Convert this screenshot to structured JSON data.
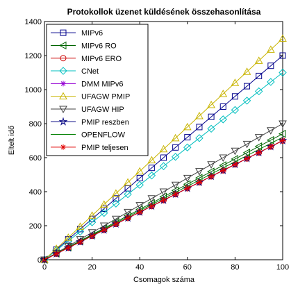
{
  "chart_data": {
    "type": "line",
    "title": "Protokollok üzenet küldésének összehasonlítása",
    "xlabel": "Csomagok száma",
    "ylabel": "Eltelt idő",
    "xlim": [
      0,
      100
    ],
    "ylim": [
      0,
      1400
    ],
    "xticks": [
      "0",
      "20",
      "40",
      "60",
      "80",
      "100"
    ],
    "yticks": [
      "0",
      "200",
      "400",
      "600",
      "800",
      "1000",
      "1200",
      "1400"
    ],
    "grid": false,
    "legend_position": "top-left",
    "x": [
      0,
      5,
      10,
      15,
      20,
      25,
      30,
      35,
      40,
      45,
      50,
      55,
      60,
      65,
      70,
      75,
      80,
      85,
      90,
      95,
      100
    ],
    "series": [
      {
        "name": "MIPv6",
        "color": "#00008b",
        "marker": "square",
        "values": [
          0,
          60,
          120,
          180,
          240,
          300,
          360,
          420,
          480,
          540,
          600,
          660,
          720,
          780,
          840,
          900,
          960,
          1020,
          1080,
          1140,
          1200
        ]
      },
      {
        "name": "MIPv6 RO",
        "color": "#006400",
        "marker": "triangle-left",
        "values": [
          0,
          37,
          74,
          111,
          148,
          185,
          222,
          259,
          296,
          333,
          370,
          407,
          444,
          481,
          518,
          555,
          592,
          629,
          666,
          703,
          740
        ]
      },
      {
        "name": "MIPv6 ERO",
        "color": "#cc0000",
        "marker": "circle",
        "values": [
          0,
          35,
          70,
          105,
          140,
          175,
          210,
          245,
          280,
          315,
          350,
          385,
          420,
          455,
          490,
          525,
          560,
          595,
          630,
          665,
          700
        ]
      },
      {
        "name": "CNet",
        "color": "#00bfbf",
        "marker": "diamond",
        "values": [
          0,
          55,
          110,
          165,
          220,
          275,
          330,
          385,
          440,
          495,
          550,
          605,
          660,
          715,
          770,
          825,
          880,
          935,
          990,
          1045,
          1100
        ]
      },
      {
        "name": "DMM MIPv6",
        "color": "#9400d3",
        "marker": "asterisk",
        "values": [
          0,
          35,
          70,
          105,
          140,
          175,
          210,
          245,
          280,
          315,
          350,
          385,
          420,
          455,
          490,
          525,
          560,
          595,
          630,
          665,
          700
        ]
      },
      {
        "name": "UFAGW PMIP",
        "color": "#c8b400",
        "marker": "triangle-up",
        "values": [
          0,
          65,
          130,
          195,
          260,
          325,
          390,
          455,
          520,
          585,
          650,
          715,
          780,
          845,
          910,
          975,
          1040,
          1105,
          1170,
          1235,
          1300
        ]
      },
      {
        "name": "UFAGW HIP",
        "color": "#404040",
        "marker": "triangle-down",
        "values": [
          0,
          40,
          80,
          120,
          160,
          200,
          240,
          280,
          320,
          360,
          400,
          440,
          480,
          520,
          560,
          600,
          640,
          680,
          720,
          760,
          800
        ]
      },
      {
        "name": "PMIP reszben",
        "color": "#000080",
        "marker": "star",
        "values": [
          0,
          35,
          70,
          105,
          140,
          175,
          210,
          245,
          280,
          315,
          350,
          385,
          420,
          455,
          490,
          525,
          560,
          595,
          630,
          665,
          700
        ]
      },
      {
        "name": "OPENFLOW",
        "color": "#008000",
        "marker": "none",
        "values": [
          0,
          36,
          72,
          108,
          144,
          180,
          216,
          252,
          288,
          324,
          360,
          396,
          432,
          468,
          504,
          540,
          576,
          612,
          648,
          684,
          720
        ]
      },
      {
        "name": "PMIP teljesen",
        "color": "#e00000",
        "marker": "asterisk",
        "values": [
          0,
          35,
          70,
          105,
          140,
          175,
          210,
          245,
          280,
          315,
          350,
          385,
          420,
          455,
          490,
          525,
          560,
          595,
          630,
          665,
          700
        ]
      }
    ]
  }
}
